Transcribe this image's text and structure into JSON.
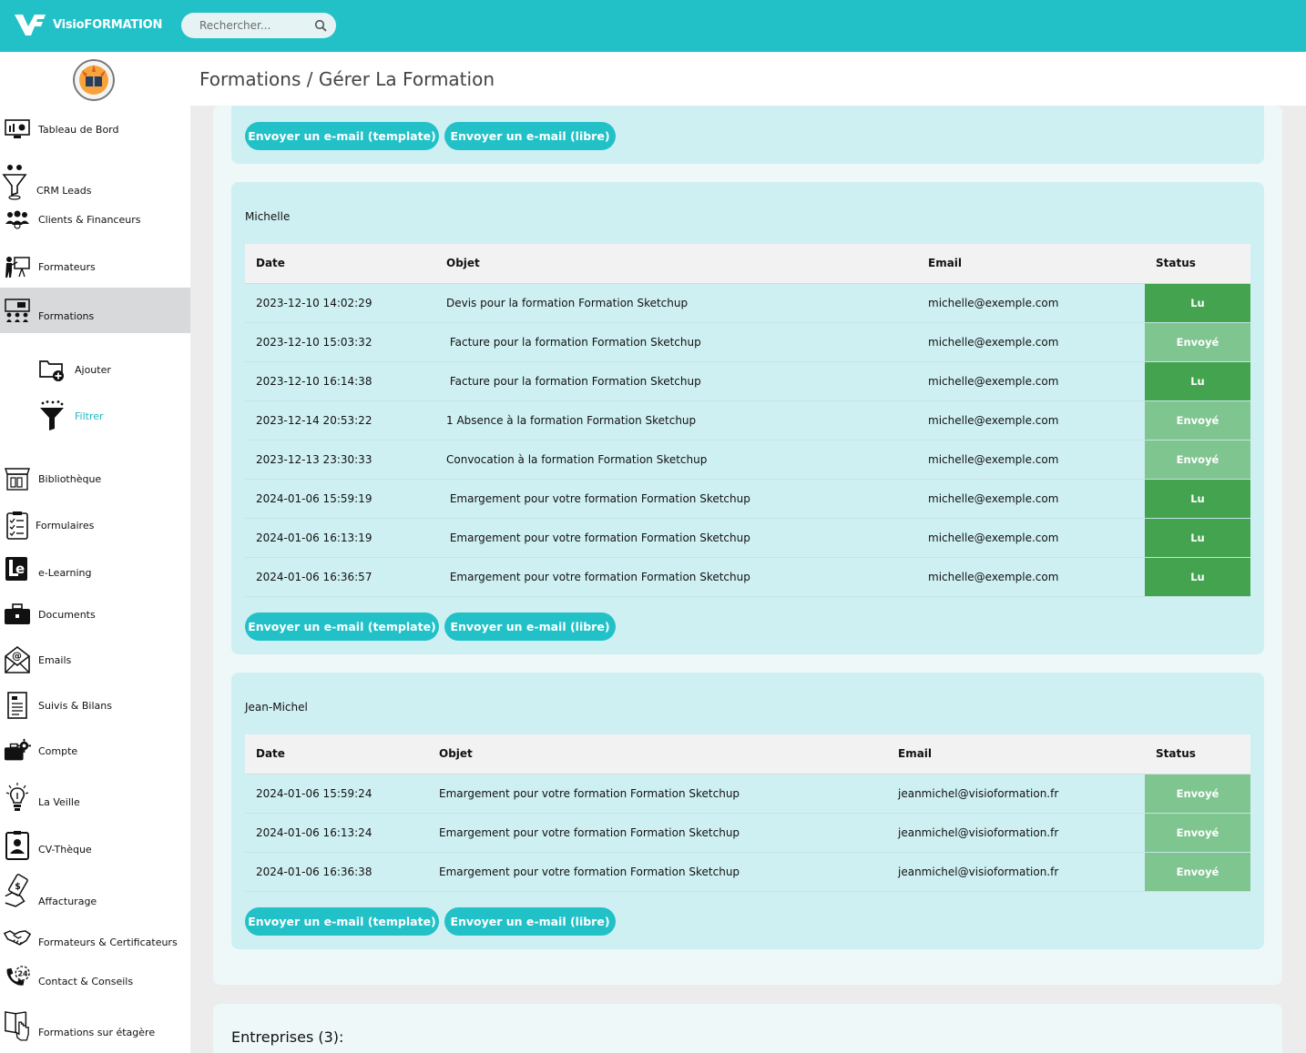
{
  "app": {
    "brand": "VisioFORMATION",
    "search_placeholder": "Rechercher..."
  },
  "colors": {
    "accent": "#22c1c8",
    "status_lu": "#43a34f",
    "status_envoye": "#7fc58f"
  },
  "sidebar": {
    "items": [
      {
        "label": "Tableau de Bord",
        "icon": "dashboard-icon"
      },
      {
        "label": "CRM Leads",
        "icon": "funnel-people-icon"
      },
      {
        "label": "Clients & Financeurs",
        "icon": "group-icon"
      },
      {
        "label": "Formateurs",
        "icon": "teacher-icon"
      },
      {
        "label": "Formations",
        "icon": "classroom-icon"
      },
      {
        "label": "Bibliothèque",
        "icon": "library-icon"
      },
      {
        "label": "Formulaires",
        "icon": "checklist-icon"
      },
      {
        "label": "e-Learning",
        "icon": "elearning-icon"
      },
      {
        "label": "Documents",
        "icon": "briefcase-icon"
      },
      {
        "label": "Emails",
        "icon": "email-icon"
      },
      {
        "label": "Suivis & Bilans",
        "icon": "report-icon"
      },
      {
        "label": "Compte",
        "icon": "account-gear-icon"
      },
      {
        "label": "La Veille",
        "icon": "lightbulb-icon"
      },
      {
        "label": "CV-Thèque",
        "icon": "id-card-icon"
      },
      {
        "label": "Affacturage",
        "icon": "money-hand-icon"
      },
      {
        "label": "Formateurs & Certificateurs",
        "icon": "handshake-icon"
      },
      {
        "label": "Contact & Conseils",
        "icon": "phone-24-icon"
      },
      {
        "label": "Formations sur étagère",
        "icon": "book-hand-icon"
      }
    ],
    "sub_items": [
      {
        "label": "Ajouter",
        "icon": "folder-add-icon"
      },
      {
        "label": "Filtrer",
        "icon": "filter-icon"
      }
    ]
  },
  "header": {
    "title": "Formations / Gérer La Formation"
  },
  "buttons": {
    "template": "Envoyer un e-mail (template)",
    "libre": "Envoyer un e-mail (libre)"
  },
  "table_headers": {
    "date": "Date",
    "objet": "Objet",
    "email": "Email",
    "status": "Status"
  },
  "groups": [
    {
      "name": "Michelle",
      "rows": [
        {
          "date": "2023-12-10 14:02:29",
          "objet": "Devis pour la formation Formation Sketchup",
          "email": "michelle@exemple.com",
          "status": "Lu"
        },
        {
          "date": "2023-12-10 15:03:32",
          "objet": " Facture pour la formation Formation Sketchup",
          "email": "michelle@exemple.com",
          "status": "Envoyé"
        },
        {
          "date": "2023-12-10 16:14:38",
          "objet": " Facture pour la formation Formation Sketchup",
          "email": "michelle@exemple.com",
          "status": "Lu"
        },
        {
          "date": "2023-12-14 20:53:22",
          "objet": "1 Absence à la formation Formation Sketchup",
          "email": "michelle@exemple.com",
          "status": "Envoyé"
        },
        {
          "date": "2023-12-13 23:30:33",
          "objet": "Convocation à la formation Formation Sketchup",
          "email": "michelle@exemple.com",
          "status": "Envoyé"
        },
        {
          "date": "2024-01-06 15:59:19",
          "objet": " Emargement pour votre formation Formation Sketchup",
          "email": "michelle@exemple.com",
          "status": "Lu"
        },
        {
          "date": "2024-01-06 16:13:19",
          "objet": " Emargement pour votre formation Formation Sketchup",
          "email": "michelle@exemple.com",
          "status": "Lu"
        },
        {
          "date": "2024-01-06 16:36:57",
          "objet": " Emargement pour votre formation Formation Sketchup",
          "email": "michelle@exemple.com",
          "status": "Lu"
        }
      ]
    },
    {
      "name": "Jean-Michel",
      "rows": [
        {
          "date": "2024-01-06 15:59:24",
          "objet": "Emargement pour votre formation Formation Sketchup",
          "email": "jeanmichel@visioformation.fr",
          "status": "Envoyé"
        },
        {
          "date": "2024-01-06 16:13:24",
          "objet": "Emargement pour votre formation Formation Sketchup",
          "email": "jeanmichel@visioformation.fr",
          "status": "Envoyé"
        },
        {
          "date": "2024-01-06 16:36:38",
          "objet": "Emargement pour votre formation Formation Sketchup",
          "email": "jeanmichel@visioformation.fr",
          "status": "Envoyé"
        }
      ]
    }
  ],
  "entreprises": {
    "title": "Entreprises (3):"
  }
}
